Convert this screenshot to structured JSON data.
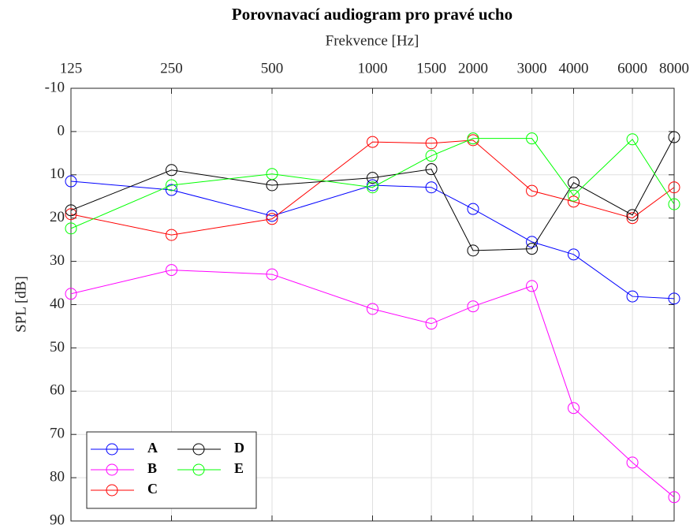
{
  "chart_data": {
    "type": "line",
    "title": "Porovnavací audiogram pro pravé ucho",
    "x_label": "Frekvence [Hz]",
    "y_label": "SPL [dB]",
    "x": [
      125,
      250,
      500,
      1000,
      1500,
      2000,
      3000,
      4000,
      6000,
      8000
    ],
    "xscale": "log",
    "xlim": [
      125,
      8000
    ],
    "xticks": [
      125,
      250,
      500,
      1000,
      1500,
      2000,
      3000,
      4000,
      6000,
      8000
    ],
    "ylim": [
      -10,
      90
    ],
    "yticks": [
      -10,
      0,
      10,
      20,
      30,
      40,
      50,
      60,
      70,
      80,
      90
    ],
    "y_reversed": true,
    "x_axis_position": "top",
    "grid": true,
    "legend": "lower left",
    "series": [
      {
        "name": "A",
        "color": "#0000ff",
        "values": [
          11.5,
          13.5,
          19.5,
          12.4,
          12.9,
          17.9,
          25.5,
          28.4,
          38.1,
          38.6
        ]
      },
      {
        "name": "B",
        "color": "#ff00ff",
        "values": [
          37.5,
          32,
          33,
          41,
          44.4,
          40.4,
          35.7,
          63.9,
          76.5,
          84.5
        ]
      },
      {
        "name": "C",
        "color": "#ff0000",
        "values": [
          19.1,
          23.9,
          20.2,
          2.4,
          2.7,
          2,
          13.7,
          16.2,
          20,
          12.9
        ]
      },
      {
        "name": "D",
        "color": "#000000",
        "values": [
          18.2,
          8.9,
          12.4,
          10.7,
          8.7,
          27.5,
          27.1,
          11.8,
          19.3,
          1.3
        ]
      },
      {
        "name": "E",
        "color": "#00ff00",
        "values": [
          22.4,
          12.4,
          9.8,
          12.9,
          5.6,
          1.6,
          1.6,
          14.8,
          1.8,
          16.8
        ]
      }
    ]
  }
}
